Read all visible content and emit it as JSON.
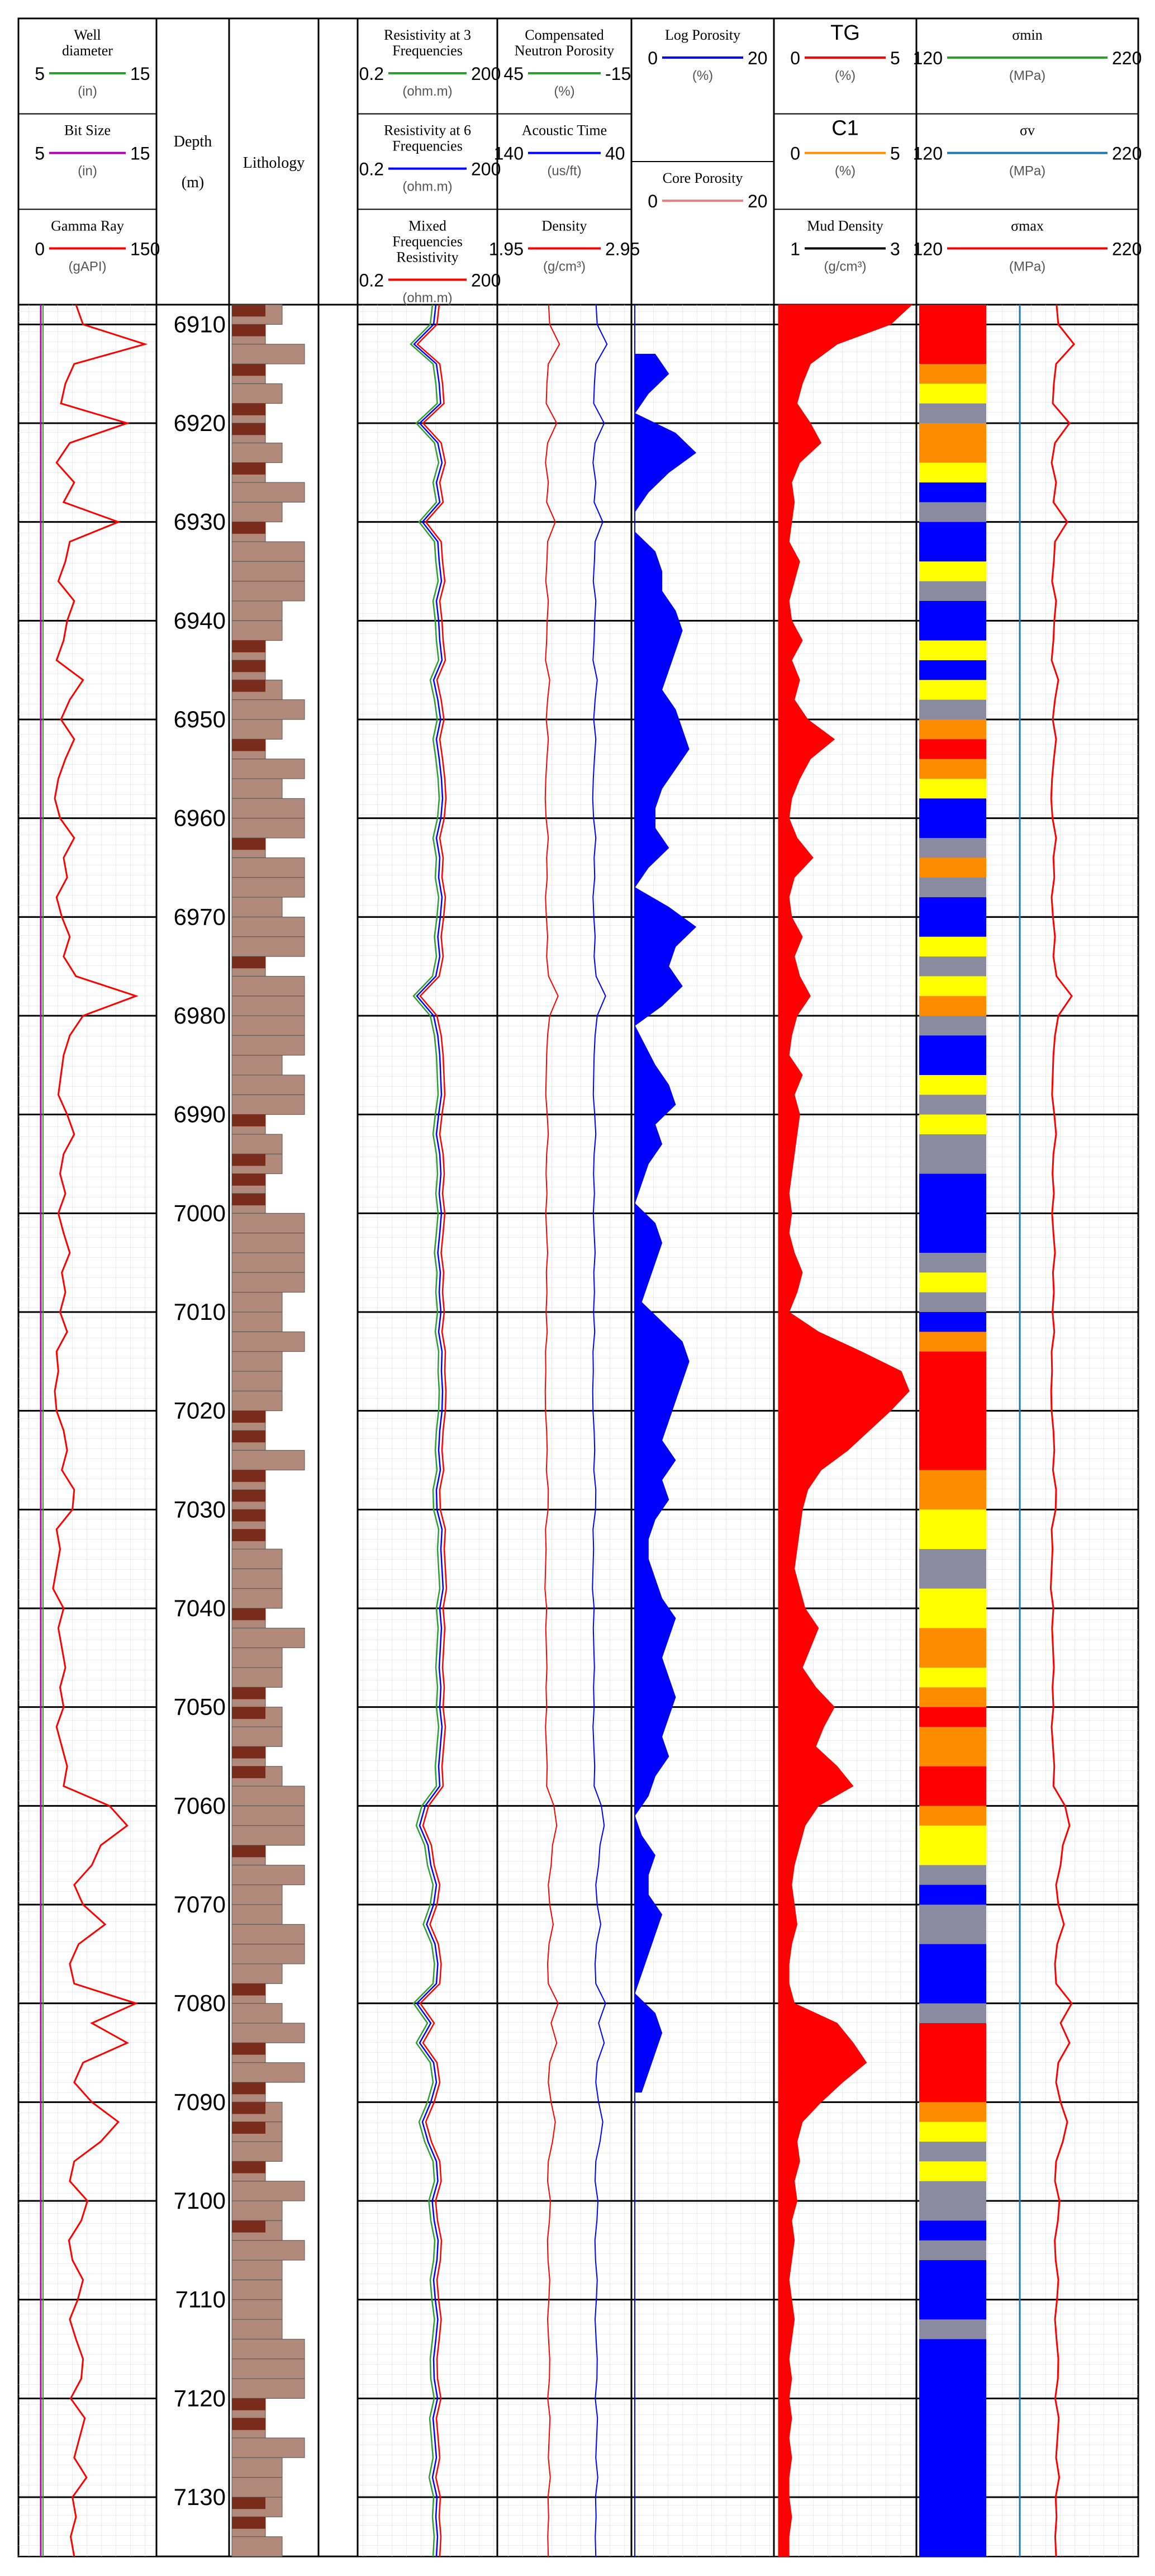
{
  "chart_data": {
    "type": "line",
    "depth": {
      "title": "Depth",
      "unit": "(m)",
      "range": [
        6908,
        7136
      ],
      "ticks": [
        6910,
        6920,
        6930,
        6940,
        6950,
        6960,
        6970,
        6980,
        6990,
        7000,
        7010,
        7020,
        7030,
        7040,
        7050,
        7060,
        7070,
        7080,
        7090,
        7100,
        7110,
        7120,
        7130
      ]
    },
    "lithology_title": "Lithology",
    "tracks": [
      {
        "id": "track1",
        "curves": [
          {
            "name": "Well diameter",
            "unit": "(in)",
            "min": "5",
            "max": "15",
            "color": "#2ca02c"
          },
          {
            "name": "Bit Size",
            "unit": "(in)",
            "min": "5",
            "max": "15",
            "color": "#b000b0"
          },
          {
            "name": "Gamma Ray",
            "unit": "(gAPI)",
            "min": "0",
            "max": "150",
            "color": "#ff0000"
          }
        ]
      },
      {
        "id": "track2",
        "curves": [
          {
            "name": "Resistivity at 3 Frequencies",
            "unit": "(ohm.m)",
            "min": "0.2",
            "max": "200",
            "color": "#2ca02c"
          },
          {
            "name": "Resistivity at 6 Frequencies",
            "unit": "(ohm.m)",
            "min": "0.2",
            "max": "200",
            "color": "#0000ff"
          },
          {
            "name": "Mixed Frequencies Resistivity",
            "unit": "(ohm.m)",
            "min": "0.2",
            "max": "200",
            "color": "#ff0000"
          }
        ]
      },
      {
        "id": "track3",
        "curves": [
          {
            "name": "Compensated Neutron Porosity",
            "unit": "(%)",
            "min": "45",
            "max": "-15",
            "color": "#2ca02c"
          },
          {
            "name": "Acoustic Time",
            "unit": "(us/ft)",
            "min": "140",
            "max": "40",
            "color": "#0000ff"
          },
          {
            "name": "Density",
            "unit": "(g/cm³)",
            "min": "1.95",
            "max": "2.95",
            "color": "#ff0000"
          }
        ]
      },
      {
        "id": "track4",
        "curves": [
          {
            "name": "Log Porosity",
            "unit": "(%)",
            "min": "0",
            "max": "20",
            "color": "#0000ff"
          },
          {
            "name": "Core Porosity",
            "unit": "",
            "min": "0",
            "max": "20",
            "color": "#f08080"
          }
        ]
      },
      {
        "id": "track5",
        "curves": [
          {
            "name": "TG",
            "unit": "(%)",
            "min": "0",
            "max": "5",
            "color": "#ff0000"
          },
          {
            "name": "C1",
            "unit": "(%)",
            "min": "0",
            "max": "5",
            "color": "#ff8c00"
          },
          {
            "name": "Mud Density",
            "unit": "(g/cm³)",
            "min": "1",
            "max": "3",
            "color": "#000000"
          }
        ]
      },
      {
        "id": "track6",
        "curves": [
          {
            "name": "σmin",
            "unit": "(MPa)",
            "min": "120",
            "max": "220",
            "color": "#2ca02c"
          },
          {
            "name": "σv",
            "unit": "(MPa)",
            "min": "120",
            "max": "220",
            "color": "#1f77b4"
          },
          {
            "name": "σmax",
            "unit": "(MPa)",
            "min": "120",
            "max": "220",
            "color": "#ff0000"
          }
        ]
      }
    ],
    "series": [
      {
        "name": "Log Porosity",
        "d": [
          6913,
          6915,
          6917,
          6919,
          6921,
          6923,
          6925,
          6927,
          6929,
          6931,
          6933,
          6935,
          6937,
          6939,
          6941,
          6943,
          6945,
          6947,
          6949,
          6951,
          6953,
          6955,
          6957,
          6959,
          6961,
          6963,
          6965,
          6967,
          6969,
          6971,
          6973,
          6975,
          6977,
          6979,
          6981,
          6985,
          6987,
          6989,
          6991,
          6993,
          6995,
          6997,
          6999,
          7001,
          7003,
          7005,
          7007,
          7009,
          7011,
          7013,
          7015,
          7017,
          7019,
          7021,
          7023,
          7025,
          7027,
          7029,
          7031,
          7033,
          7035,
          7037,
          7039,
          7041,
          7043,
          7045,
          7047,
          7049,
          7051,
          7053,
          7055,
          7057,
          7059,
          7061,
          7063,
          7065,
          7067,
          7069,
          7071,
          7073,
          7075,
          7077,
          7079,
          7081,
          7083,
          7085,
          7087,
          7089
        ],
        "v": [
          3,
          5,
          2,
          0,
          6,
          9,
          5,
          2,
          0,
          0,
          3,
          4,
          4,
          6,
          7,
          6,
          5,
          4,
          6,
          7,
          8,
          6,
          4,
          3,
          3,
          5,
          2,
          0,
          5,
          9,
          6,
          5,
          7,
          4,
          0,
          3,
          5,
          6,
          3,
          4,
          2,
          1,
          0,
          3,
          4,
          3,
          2,
          1,
          4,
          7,
          8,
          7,
          6,
          5,
          4,
          6,
          4,
          5,
          3,
          2,
          2,
          3,
          4,
          6,
          5,
          4,
          5,
          6,
          5,
          4,
          5,
          3,
          2,
          0,
          1,
          3,
          2,
          2,
          4,
          3,
          2,
          1,
          0,
          3,
          4,
          3,
          2,
          1
        ]
      },
      {
        "name": "TG",
        "d": [
          6908,
          6910,
          6912,
          6914,
          6916,
          6918,
          6920,
          6922,
          6924,
          6926,
          6928,
          6930,
          6932,
          6934,
          6936,
          6938,
          6940,
          6942,
          6944,
          6946,
          6948,
          6950,
          6952,
          6954,
          6956,
          6958,
          6960,
          6962,
          6964,
          6966,
          6968,
          6970,
          6972,
          6974,
          6976,
          6978,
          6980,
          6982,
          6984,
          6986,
          6988,
          6990,
          6992,
          6994,
          6996,
          6998,
          7000,
          7002,
          7004,
          7006,
          7008,
          7010,
          7012,
          7014,
          7016,
          7018,
          7020,
          7022,
          7024,
          7026,
          7028,
          7030,
          7032,
          7034,
          7036,
          7038,
          7040,
          7042,
          7044,
          7046,
          7048,
          7050,
          7052,
          7054,
          7056,
          7058,
          7060,
          7062,
          7064,
          7066,
          7068,
          7070,
          7072,
          7074,
          7076,
          7078,
          7080,
          7082,
          7084,
          7086,
          7088,
          7090,
          7092,
          7094,
          7096,
          7098,
          7100,
          7102,
          7104,
          7106,
          7108,
          7110,
          7112,
          7114,
          7116,
          7118,
          7120,
          7122,
          7124,
          7126,
          7128,
          7130,
          7132,
          7134,
          7136
        ],
        "v": [
          5,
          4.2,
          2.2,
          1.2,
          0.9,
          0.7,
          1.2,
          1.6,
          0.8,
          0.5,
          0.6,
          0.5,
          0.4,
          0.8,
          0.6,
          0.4,
          0.5,
          0.9,
          0.5,
          0.8,
          0.6,
          1.1,
          2.1,
          1.2,
          0.8,
          0.5,
          0.4,
          0.7,
          1.3,
          0.6,
          0.4,
          0.5,
          0.9,
          0.6,
          0.8,
          1.2,
          0.7,
          0.5,
          0.4,
          0.9,
          0.6,
          0.8,
          0.7,
          0.6,
          0.5,
          0.4,
          0.5,
          0.4,
          0.6,
          0.9,
          0.7,
          0.4,
          1.5,
          3.1,
          4.6,
          4.9,
          4.2,
          3.4,
          2.6,
          1.6,
          1.1,
          0.9,
          0.8,
          0.7,
          0.6,
          0.8,
          1.0,
          1.5,
          1.2,
          0.9,
          1.4,
          2.1,
          1.7,
          1.4,
          2.2,
          2.8,
          1.5,
          1.0,
          0.8,
          0.6,
          0.5,
          0.6,
          0.7,
          0.5,
          0.4,
          0.4,
          0.6,
          2.2,
          2.8,
          3.3,
          2.4,
          1.6,
          0.9,
          0.7,
          0.8,
          0.6,
          0.7,
          0.5,
          0.6,
          0.5,
          0.4,
          0.5,
          0.6,
          0.5,
          0.4,
          0.5,
          0.4,
          0.5,
          0.4,
          0.5,
          0.4,
          0.4,
          0.5,
          0.4,
          0.4
        ]
      },
      {
        "name": "Gamma Ray",
        "d": [
          6908,
          6910,
          6912,
          6914,
          6916,
          6918,
          6920,
          6922,
          6924,
          6926,
          6928,
          6930,
          6932,
          6934,
          6936,
          6938,
          6940,
          6942,
          6944,
          6946,
          6948,
          6950,
          6952,
          6954,
          6956,
          6958,
          6960,
          6962,
          6964,
          6966,
          6968,
          6970,
          6972,
          6974,
          6976,
          6978,
          6980,
          6982,
          6984,
          6986,
          6988,
          6990,
          6992,
          6994,
          6996,
          6998,
          7000,
          7002,
          7004,
          7006,
          7008,
          7010,
          7012,
          7014,
          7016,
          7018,
          7020,
          7022,
          7024,
          7026,
          7028,
          7030,
          7032,
          7034,
          7036,
          7038,
          7040,
          7042,
          7044,
          7046,
          7048,
          7050,
          7052,
          7054,
          7056,
          7058,
          7060,
          7062,
          7064,
          7066,
          7068,
          7070,
          7072,
          7074,
          7076,
          7078,
          7080,
          7082,
          7084,
          7086,
          7088,
          7090,
          7092,
          7094,
          7096,
          7098,
          7100,
          7102,
          7104,
          7106,
          7108,
          7110,
          7112,
          7114,
          7116,
          7118,
          7120,
          7122,
          7124,
          7126,
          7128,
          7130,
          7132,
          7134,
          7136
        ],
        "v": [
          62,
          70,
          140,
          60,
          50,
          45,
          120,
          55,
          40,
          60,
          48,
          110,
          55,
          50,
          42,
          60,
          52,
          48,
          40,
          70,
          55,
          45,
          60,
          50,
          42,
          38,
          44,
          60,
          48,
          52,
          40,
          46,
          55,
          48,
          62,
          130,
          70,
          55,
          48,
          45,
          42,
          52,
          60,
          48,
          44,
          50,
          42,
          48,
          55,
          46,
          50,
          44,
          52,
          40,
          42,
          38,
          40,
          48,
          52,
          46,
          60,
          58,
          40,
          44,
          40,
          36,
          48,
          42,
          46,
          50,
          44,
          48,
          40,
          46,
          52,
          48,
          100,
          120,
          90,
          80,
          60,
          70,
          95,
          65,
          55,
          60,
          130,
          80,
          120,
          70,
          60,
          80,
          110,
          90,
          60,
          55,
          75,
          68,
          54,
          58,
          70,
          64,
          55,
          62,
          70,
          68,
          56,
          72,
          66,
          60,
          74,
          58,
          62,
          56,
          60
        ]
      }
    ]
  }
}
